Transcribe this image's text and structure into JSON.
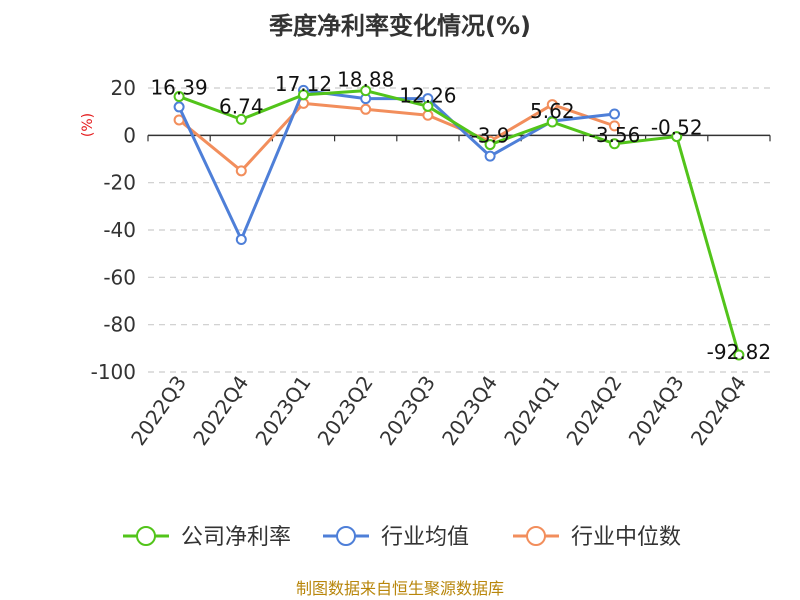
{
  "chart_data": {
    "type": "line",
    "title": "季度净利率变化情况(%)",
    "ylabel": "(%)",
    "categories": [
      "2022Q3",
      "2022Q4",
      "2023Q1",
      "2023Q2",
      "2023Q3",
      "2023Q4",
      "2024Q1",
      "2024Q2",
      "2024Q3",
      "2024Q4"
    ],
    "ylim": [
      -100,
      20
    ],
    "yticks": [
      20,
      0,
      -20,
      -40,
      -60,
      -80,
      -100
    ],
    "grid": "horizontal-dashed",
    "legend_position": "bottom",
    "series": [
      {
        "name": "公司净利率",
        "color": "#52c41a",
        "values": [
          16.39,
          6.74,
          17.12,
          18.88,
          12.26,
          -3.9,
          5.62,
          -3.56,
          -0.52,
          -92.82
        ],
        "labels": [
          "16.39",
          "6.74",
          "17.12",
          "18.88",
          "12.26",
          "-3.9",
          "5.62",
          "-3.56",
          "-0.52",
          "-92.82"
        ]
      },
      {
        "name": "行业均值",
        "color": "#4e7fd8",
        "values": [
          12,
          -44,
          19,
          15.5,
          15.5,
          -8.8,
          6,
          9,
          null,
          null
        ]
      },
      {
        "name": "行业中位数",
        "color": "#f28e5c",
        "values": [
          6.5,
          -15,
          13.5,
          11,
          8.5,
          -2.5,
          13,
          4,
          null,
          null
        ]
      }
    ]
  },
  "source": "制图数据来自恒生聚源数据库"
}
